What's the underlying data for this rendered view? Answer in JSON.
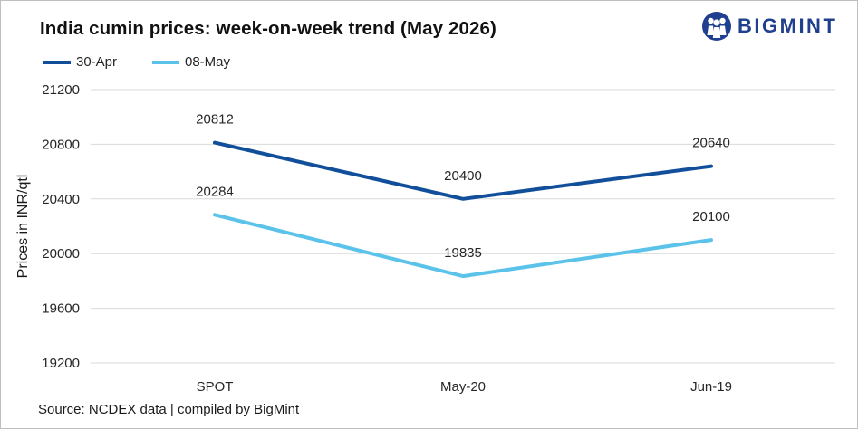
{
  "title": "India cumin prices: week-on-week trend (May 2026)",
  "logo": {
    "text": "BIGMINT",
    "icon": "people-icon",
    "color": "#1f3f8f"
  },
  "source": "Source: NCDEX data  | compiled by BigMint",
  "chart_data": {
    "type": "line",
    "categories": [
      "SPOT",
      "May-20",
      "Jun-19"
    ],
    "series": [
      {
        "name": "30-Apr",
        "values": [
          20812,
          20400,
          20640
        ],
        "color": "#124f9a"
      },
      {
        "name": "08-May",
        "values": [
          20284,
          19835,
          20100
        ],
        "color": "#5bc3ea"
      }
    ],
    "ylabel": "Prices in INR/qtl",
    "xlabel": "",
    "ylim": [
      19200,
      21200
    ],
    "yticks": [
      19200,
      19600,
      20000,
      20400,
      20800,
      21200
    ],
    "grid": true,
    "legend": "top-left",
    "data_labels": true
  }
}
